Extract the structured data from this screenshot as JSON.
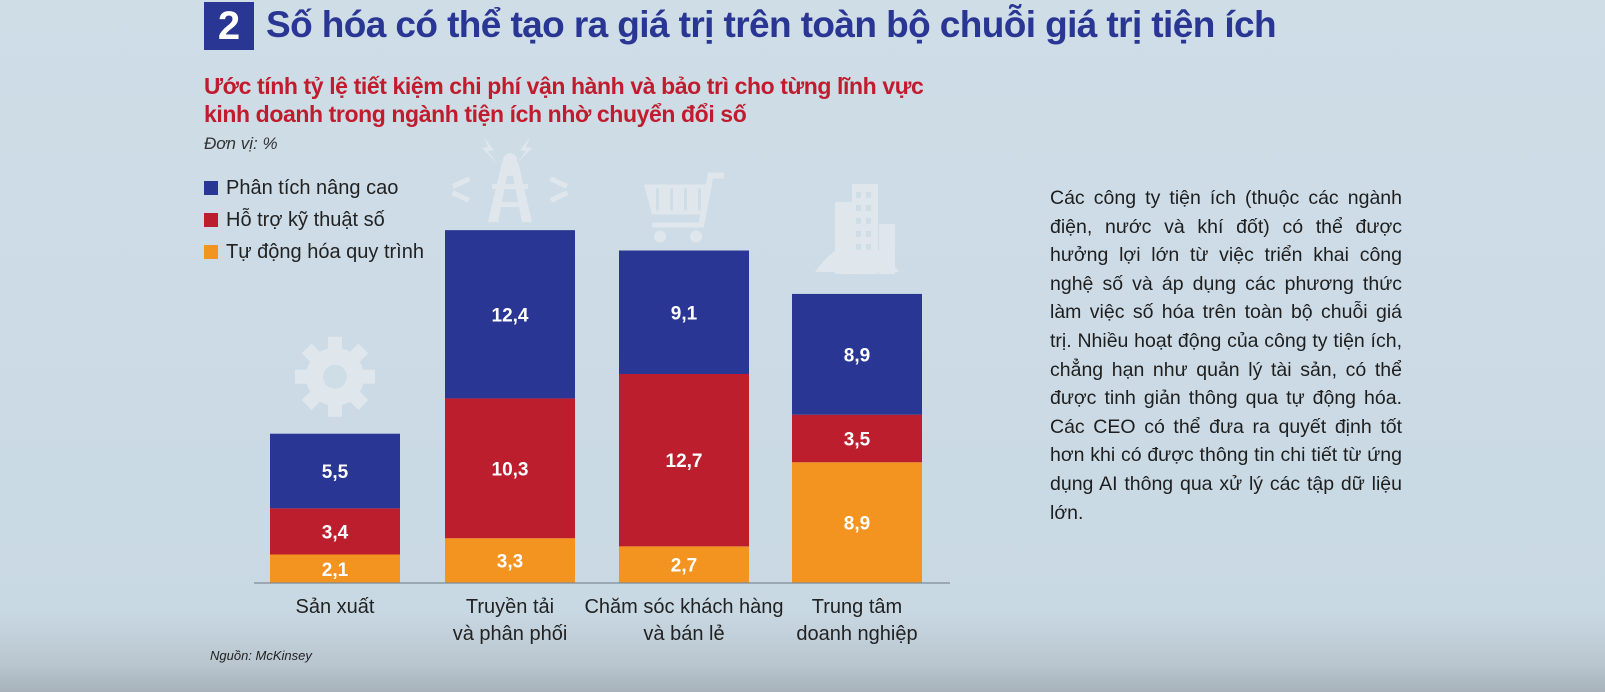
{
  "header": {
    "number": "2",
    "title": "Số hóa có thể tạo ra giá trị trên toàn bộ chuỗi giá trị tiện ích"
  },
  "chart_title_line1": "Ước tính tỷ lệ tiết kiệm chi phí vận hành và bảo trì cho từng lĩnh vực",
  "chart_title_line2": "kinh doanh trong ngành tiện ích nhờ chuyển đổi số",
  "unit": "Đơn vị: %",
  "source": "Nguồn: McKinsey",
  "description": "Các công ty tiện ích (thuộc các ngành điện, nước và khí đốt) có thể được hưởng lợi lớn từ việc triển khai công nghệ số và áp dụng các phương thức làm việc số hóa trên toàn bộ chuỗi giá trị. Nhiều hoạt động của công ty tiện ích, chẳng hạn như quản lý tài sản, có thể được tinh giản thông qua tự động hóa. Các CEO có thể đưa ra quyết định tốt hơn khi có được thông tin chi tiết từ ứng dụng AI thông qua xử lý các tập dữ liệu lớn.",
  "colors": {
    "advanced_analytics": "#2a3693",
    "digital_support": "#bd1e2d",
    "process_automation": "#f39320",
    "icon": "#dfe7ed",
    "axis": "#7f8a93"
  },
  "chart_data": {
    "type": "bar",
    "stacked": true,
    "title": "Ước tính tỷ lệ tiết kiệm chi phí vận hành và bảo trì cho từng lĩnh vực kinh doanh trong ngành tiện ích nhờ chuyển đổi số",
    "ylabel": "Đơn vị: %",
    "categories": [
      [
        "Sản xuất"
      ],
      [
        "Truyền tải",
        "và phân phối"
      ],
      [
        "Chăm sóc khách hàng",
        "và bán lẻ"
      ],
      [
        "Trung tâm",
        "doanh nghiệp"
      ]
    ],
    "category_icons": [
      "gear-icon",
      "transmission-tower-icon",
      "shopping-cart-icon",
      "office-building-icon"
    ],
    "series": [
      {
        "name": "Tự động hóa quy trình",
        "color": "#f39320",
        "values": [
          2.1,
          3.3,
          2.7,
          8.9
        ],
        "labels": [
          "2,1",
          "3,3",
          "2,7",
          "8,9"
        ]
      },
      {
        "name": "Hỗ trợ kỹ thuật số",
        "color": "#bd1e2d",
        "values": [
          3.4,
          10.3,
          12.7,
          3.5
        ],
        "labels": [
          "3,4",
          "10,3",
          "12,7",
          "3,5"
        ]
      },
      {
        "name": "Phân tích nâng cao",
        "color": "#2a3693",
        "values": [
          5.5,
          12.4,
          9.1,
          8.9
        ],
        "labels": [
          "5,5",
          "12,4",
          "9,1",
          "8,9"
        ]
      }
    ],
    "legend_order": [
      "Phân tích nâng cao",
      "Hỗ trợ kỹ thuật số",
      "Tự động hóa quy trình"
    ],
    "ylim": [
      0,
      26.6
    ],
    "grid": false,
    "legend_position": "top-left"
  }
}
